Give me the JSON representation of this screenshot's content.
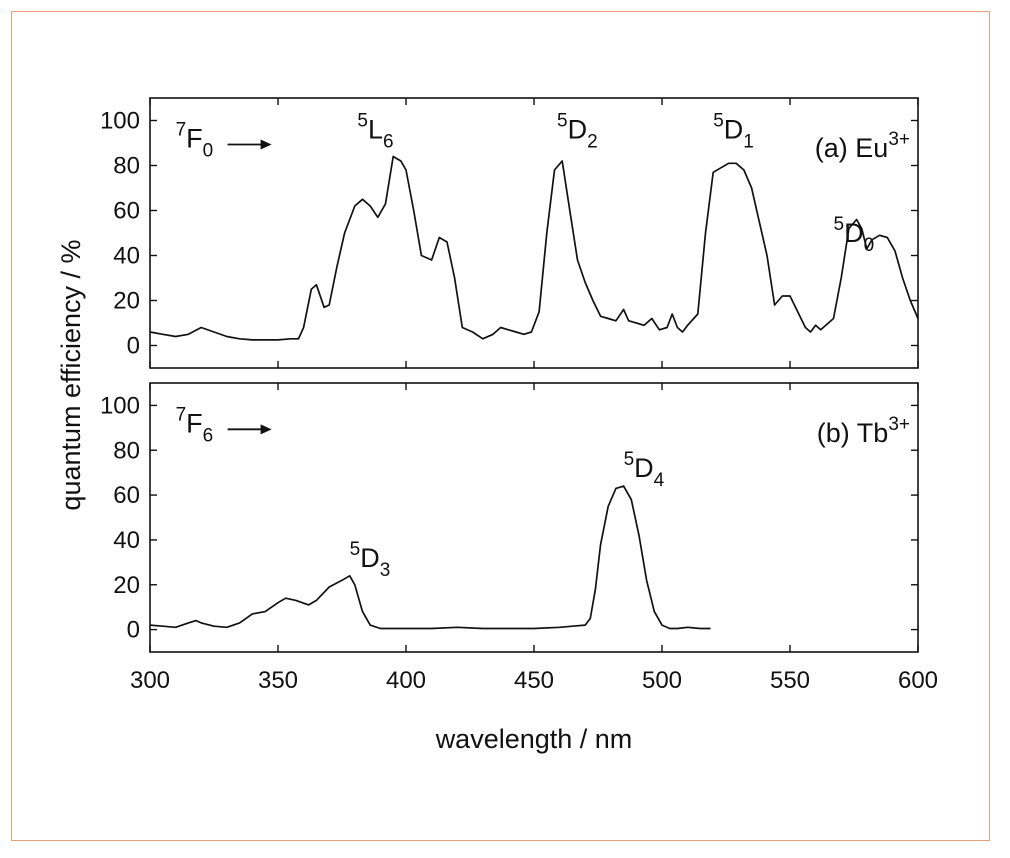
{
  "chart_data": [
    {
      "type": "line",
      "panel_label": {
        "text": "(a) Eu",
        "sup": "3+"
      },
      "ylabel": "quantum efficiency / %",
      "xlabel": "wavelength / nm",
      "xlim": [
        300,
        600
      ],
      "ylim": [
        -10,
        110
      ],
      "x_ticks": [
        300,
        350,
        400,
        450,
        500,
        550,
        600
      ],
      "y_ticks": [
        0,
        20,
        40,
        60,
        80,
        100
      ],
      "line_color": "#111111",
      "annotations": [
        {
          "id": "7F0",
          "sup": "7",
          "main": "F",
          "sub": "0",
          "arrow": true,
          "x": 310,
          "y": 88
        },
        {
          "id": "5L6",
          "sup": "5",
          "main": "L",
          "sub": "6",
          "x": 381,
          "y": 92
        },
        {
          "id": "5D2",
          "sup": "5",
          "main": "D",
          "sub": "2",
          "x": 459,
          "y": 92
        },
        {
          "id": "5D1",
          "sup": "5",
          "main": "D",
          "sub": "1",
          "x": 520,
          "y": 92
        },
        {
          "id": "5D0",
          "sup": "5",
          "main": "D",
          "sub": "0",
          "x": 567,
          "y": 46
        }
      ],
      "series": [
        {
          "x": [
            300,
            305,
            310,
            315,
            320,
            325,
            330,
            335,
            340,
            345,
            350,
            355,
            358,
            360,
            363,
            365,
            368,
            370,
            373,
            376,
            380,
            383,
            386,
            389,
            392,
            395,
            398,
            400,
            403,
            406,
            410,
            413,
            416,
            419,
            422,
            426,
            430,
            434,
            437,
            440,
            443,
            446,
            449,
            452,
            455,
            458,
            461,
            464,
            467,
            470,
            473,
            476,
            479,
            482,
            485,
            487,
            490,
            493,
            496,
            499,
            502,
            504,
            506,
            508,
            510,
            514,
            517,
            520,
            523,
            526,
            529,
            532,
            535,
            538,
            541,
            544,
            547,
            550,
            553,
            556,
            558,
            560,
            562,
            564,
            567,
            570,
            573,
            576,
            578,
            580,
            582,
            585,
            588,
            591,
            594,
            597,
            600
          ],
          "y": [
            6,
            5,
            4,
            5,
            8,
            6,
            4,
            3,
            2.5,
            2.5,
            2.5,
            3,
            3,
            8,
            25,
            27,
            17,
            18,
            35,
            50,
            62,
            65,
            62,
            57,
            63,
            84,
            82,
            78,
            60,
            40,
            38,
            48,
            46,
            30,
            8,
            6,
            3,
            5,
            8,
            7,
            6,
            5,
            6,
            15,
            50,
            78,
            82,
            60,
            38,
            28,
            20,
            13,
            12,
            11,
            16,
            11,
            10,
            9,
            12,
            7,
            8,
            14,
            8,
            6,
            9,
            14,
            50,
            77,
            79,
            81,
            81,
            78,
            70,
            55,
            40,
            18,
            22,
            22,
            15,
            8,
            6,
            9,
            7,
            9,
            12,
            30,
            52,
            56,
            52,
            43,
            47,
            49,
            48,
            42,
            30,
            20,
            12
          ]
        }
      ]
    },
    {
      "type": "line",
      "panel_label": {
        "text": "(b) Tb",
        "sup": "3+"
      },
      "ylabel": "quantum efficiency / %",
      "xlabel": "wavelength / nm",
      "xlim": [
        300,
        600
      ],
      "ylim": [
        -10,
        110
      ],
      "x_ticks": [
        300,
        350,
        400,
        450,
        500,
        550,
        600
      ],
      "y_ticks": [
        0,
        20,
        40,
        60,
        80,
        100
      ],
      "line_color": "#111111",
      "annotations": [
        {
          "id": "7F6",
          "sup": "7",
          "main": "F",
          "sub": "6",
          "arrow": true,
          "x": 310,
          "y": 88
        },
        {
          "id": "5D3",
          "sup": "5",
          "main": "D",
          "sub": "3",
          "x": 378,
          "y": 28
        },
        {
          "id": "5D4",
          "sup": "5",
          "main": "D",
          "sub": "4",
          "x": 485,
          "y": 68
        }
      ],
      "series": [
        {
          "x": [
            300,
            305,
            310,
            315,
            318,
            320,
            325,
            330,
            335,
            340,
            345,
            350,
            353,
            357,
            362,
            365,
            370,
            375,
            378,
            380,
            383,
            386,
            390,
            395,
            400,
            410,
            420,
            430,
            440,
            450,
            460,
            465,
            470,
            472,
            474,
            476,
            479,
            482,
            485,
            488,
            491,
            494,
            497,
            500,
            503,
            506,
            510,
            515,
            519
          ],
          "y": [
            2,
            1.5,
            1,
            3,
            4,
            3,
            1.5,
            1,
            3,
            7,
            8,
            12,
            14,
            13,
            11,
            13,
            19,
            22,
            24,
            20,
            8,
            2,
            0.5,
            0.5,
            0.5,
            0.5,
            1,
            0.5,
            0.5,
            0.5,
            1,
            1.5,
            2,
            5,
            18,
            38,
            55,
            63,
            64,
            58,
            42,
            22,
            8,
            2,
            0.5,
            0.5,
            1,
            0.5,
            0.5
          ]
        }
      ]
    }
  ]
}
